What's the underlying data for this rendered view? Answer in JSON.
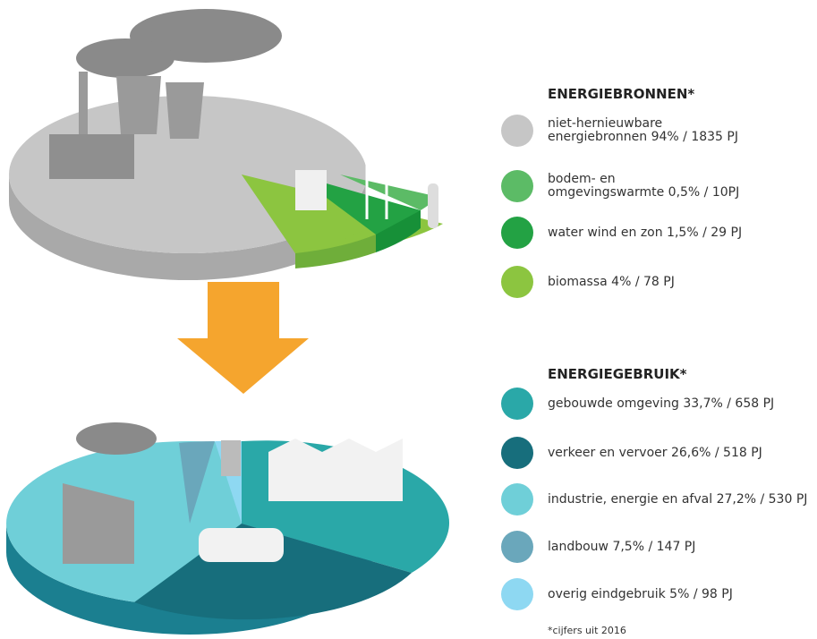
{
  "sections": [
    {
      "title": "ENERGIEBRONNEN*",
      "items": [
        {
          "lines": [
            "niet-hernieuwbare",
            "energiebronnen 94% / 1835 PJ"
          ],
          "color": "#c6c6c6"
        },
        {
          "lines": [
            "bodem- en",
            "omgevingswarmte 0,5% / 10PJ"
          ],
          "color": "#5cbb66"
        },
        {
          "lines": [
            "water wind en zon 1,5% / 29 PJ"
          ],
          "color": "#23a244"
        },
        {
          "lines": [
            "biomassa 4% / 78 PJ"
          ],
          "color": "#8cc540"
        }
      ]
    },
    {
      "title": "ENERGIEGEBRUIK*",
      "items": [
        {
          "lines": [
            "gebouwde omgeving 33,7% / 658 PJ"
          ],
          "color": "#2aa8a8"
        },
        {
          "lines": [
            "verkeer en vervoer 26,6% / 518 PJ"
          ],
          "color": "#176e7c"
        },
        {
          "lines": [
            "industrie, energie en afval 27,2% / 530 PJ"
          ],
          "color": "#6fcfd8"
        },
        {
          "lines": [
            "landbouw 7,5% / 147 PJ"
          ],
          "color": "#6aa7bb"
        },
        {
          "lines": [
            "overig eindgebruik 5% / 98 PJ"
          ],
          "color": "#8ed8f2"
        }
      ]
    }
  ],
  "footnote": "*cijfers uit 2016"
}
